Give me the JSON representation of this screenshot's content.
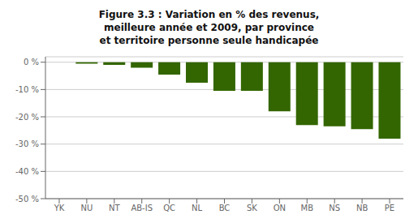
{
  "chart_data": {
    "type": "bar",
    "title": "Figure 3.3 : Variation en % des revenus,\nmeilleure année et 2009, par province\net territoire personne seule handicapée",
    "categories": [
      "YK",
      "NU",
      "NT",
      "AB-IS",
      "QC",
      "NL",
      "BC",
      "SK",
      "ON",
      "MB",
      "NS",
      "NB",
      "PE"
    ],
    "values": [
      0.0,
      -0.5,
      -1.0,
      -2.0,
      -4.5,
      -7.5,
      -10.5,
      -10.5,
      -18.0,
      -23.0,
      -23.5,
      -24.5,
      -28.0
    ],
    "color": "#336600",
    "ylim": [
      -50,
      2
    ],
    "yticks": [
      {
        "value": 0,
        "label": "0 %"
      },
      {
        "value": -10,
        "label": "-10 %"
      },
      {
        "value": -20,
        "label": "-20 %"
      },
      {
        "value": -30,
        "label": "-30 %"
      },
      {
        "value": -40,
        "label": "-40 %"
      },
      {
        "value": -50,
        "label": "-50 %"
      }
    ],
    "grid": true
  }
}
